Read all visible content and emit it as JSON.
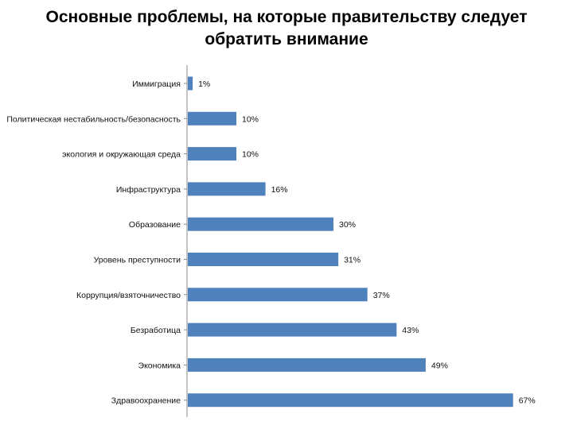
{
  "title_line1": "Основные проблемы, на которые правительству следует",
  "title_line2": "обратить внимание",
  "chart_data": {
    "type": "bar",
    "orientation": "horizontal",
    "categories": [
      "Иммиграция",
      "Политическая нестабильность/безопасность",
      "экология и окружающая среда",
      "Инфраструктура",
      "Образование",
      "Уровень преступности",
      "Коррупция/взяточничество",
      "Безработица",
      "Экономика",
      "Здравоохранение"
    ],
    "values": [
      1,
      10,
      10,
      16,
      30,
      31,
      37,
      43,
      49,
      67
    ],
    "value_labels": [
      "1%",
      "10%",
      "10%",
      "16%",
      "30%",
      "31%",
      "37%",
      "43%",
      "49%",
      "67%"
    ],
    "unit": "%",
    "bar_color": "#4F81BD",
    "grid": false,
    "legend": "none"
  }
}
